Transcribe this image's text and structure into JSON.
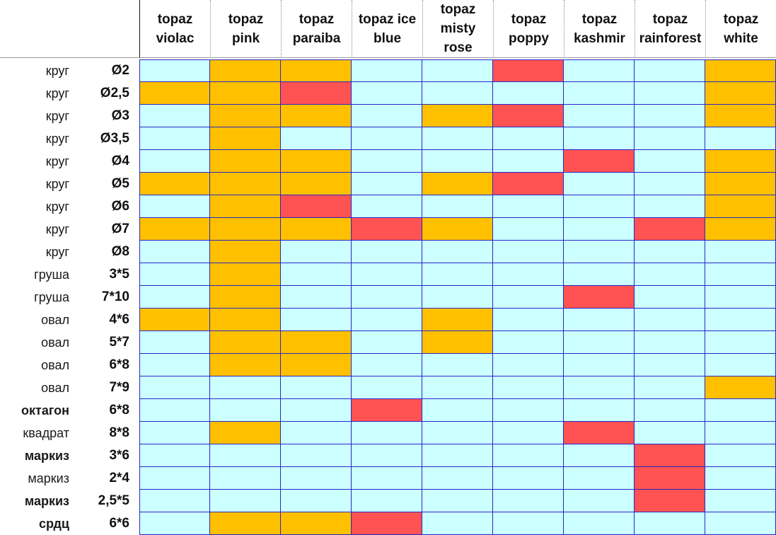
{
  "colors": {
    "empty": "#ccffff",
    "available": "#ffc000",
    "low": "#ff5252"
  },
  "columns": [
    "topaz\nviolac",
    "topaz\npink",
    "topaz\nparaiba",
    "topaz ice\nblue",
    "topaz\nmisty\nrose",
    "topaz\npoppy",
    "topaz\nkashmir",
    "topaz\nrainforest",
    "topaz\nwhite"
  ],
  "rows": [
    {
      "shape": "круг",
      "size": "Ø2",
      "shape_bold": false,
      "cells": [
        "empty",
        "available",
        "available",
        "empty",
        "empty",
        "low",
        "empty",
        "empty",
        "available"
      ]
    },
    {
      "shape": "круг",
      "size": "Ø2,5",
      "shape_bold": false,
      "cells": [
        "available",
        "available",
        "low",
        "empty",
        "empty",
        "empty",
        "empty",
        "empty",
        "available"
      ]
    },
    {
      "shape": "круг",
      "size": "Ø3",
      "shape_bold": false,
      "cells": [
        "empty",
        "available",
        "available",
        "empty",
        "available",
        "low",
        "empty",
        "empty",
        "available"
      ]
    },
    {
      "shape": "круг",
      "size": "Ø3,5",
      "shape_bold": false,
      "cells": [
        "empty",
        "available",
        "empty",
        "empty",
        "empty",
        "empty",
        "empty",
        "empty",
        "empty"
      ]
    },
    {
      "shape": "круг",
      "size": "Ø4",
      "shape_bold": false,
      "cells": [
        "empty",
        "available",
        "available",
        "empty",
        "empty",
        "empty",
        "low",
        "empty",
        "available"
      ]
    },
    {
      "shape": "круг",
      "size": "Ø5",
      "shape_bold": false,
      "cells": [
        "available",
        "available",
        "available",
        "empty",
        "available",
        "low",
        "empty",
        "empty",
        "available"
      ]
    },
    {
      "shape": "круг",
      "size": "Ø6",
      "shape_bold": false,
      "cells": [
        "empty",
        "available",
        "low",
        "empty",
        "empty",
        "empty",
        "empty",
        "empty",
        "available"
      ]
    },
    {
      "shape": "круг",
      "size": "Ø7",
      "shape_bold": false,
      "cells": [
        "available",
        "available",
        "available",
        "low",
        "available",
        "empty",
        "empty",
        "low",
        "available"
      ]
    },
    {
      "shape": "круг",
      "size": "Ø8",
      "shape_bold": false,
      "cells": [
        "empty",
        "available",
        "empty",
        "empty",
        "empty",
        "empty",
        "empty",
        "empty",
        "empty"
      ]
    },
    {
      "shape": "груша",
      "size": "3*5",
      "shape_bold": false,
      "cells": [
        "empty",
        "available",
        "empty",
        "empty",
        "empty",
        "empty",
        "empty",
        "empty",
        "empty"
      ]
    },
    {
      "shape": "груша",
      "size": "7*10",
      "shape_bold": false,
      "cells": [
        "empty",
        "available",
        "empty",
        "empty",
        "empty",
        "empty",
        "low",
        "empty",
        "empty"
      ]
    },
    {
      "shape": "овал",
      "size": "4*6",
      "shape_bold": false,
      "cells": [
        "available",
        "available",
        "empty",
        "empty",
        "available",
        "empty",
        "empty",
        "empty",
        "empty"
      ]
    },
    {
      "shape": "овал",
      "size": "5*7",
      "shape_bold": false,
      "cells": [
        "empty",
        "available",
        "available",
        "empty",
        "available",
        "empty",
        "empty",
        "empty",
        "empty"
      ]
    },
    {
      "shape": "овал",
      "size": "6*8",
      "shape_bold": false,
      "cells": [
        "empty",
        "available",
        "available",
        "empty",
        "empty",
        "empty",
        "empty",
        "empty",
        "empty"
      ]
    },
    {
      "shape": "овал",
      "size": "7*9",
      "shape_bold": false,
      "cells": [
        "empty",
        "empty",
        "empty",
        "empty",
        "empty",
        "empty",
        "empty",
        "empty",
        "available"
      ]
    },
    {
      "shape": "октагон",
      "size": "6*8",
      "shape_bold": true,
      "cells": [
        "empty",
        "empty",
        "empty",
        "low",
        "empty",
        "empty",
        "empty",
        "empty",
        "empty"
      ]
    },
    {
      "shape": "квадрат",
      "size": "8*8",
      "shape_bold": false,
      "cells": [
        "empty",
        "available",
        "empty",
        "empty",
        "empty",
        "empty",
        "low",
        "empty",
        "empty"
      ]
    },
    {
      "shape": "маркиз",
      "size": "3*6",
      "shape_bold": true,
      "cells": [
        "empty",
        "empty",
        "empty",
        "empty",
        "empty",
        "empty",
        "empty",
        "low",
        "empty"
      ]
    },
    {
      "shape": "маркиз",
      "size": "2*4",
      "shape_bold": false,
      "cells": [
        "empty",
        "empty",
        "empty",
        "empty",
        "empty",
        "empty",
        "empty",
        "low",
        "empty"
      ]
    },
    {
      "shape": "маркиз",
      "size": "2,5*5",
      "shape_bold": true,
      "cells": [
        "empty",
        "empty",
        "empty",
        "empty",
        "empty",
        "empty",
        "empty",
        "low",
        "empty"
      ]
    },
    {
      "shape": "срдц",
      "size": "6*6",
      "shape_bold": true,
      "cells": [
        "empty",
        "available",
        "available",
        "low",
        "empty",
        "empty",
        "empty",
        "empty",
        "empty"
      ]
    }
  ]
}
